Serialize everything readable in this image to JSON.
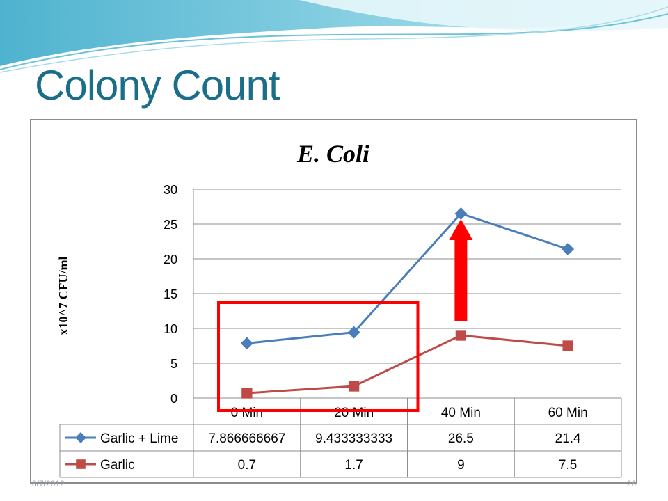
{
  "slide": {
    "title": "Colony Count",
    "date": "8/7/2012",
    "page_number": "26"
  },
  "colors": {
    "title": "#1b6e87",
    "garlic_lime": "#4a7ebb",
    "garlic": "#be4b48",
    "highlight": "#ff0000"
  },
  "chart_data": {
    "type": "line",
    "title": "E. Coli",
    "ylabel": "x10^7 CFU/ml",
    "xlabel": "",
    "categories": [
      "0 Min",
      "20 Min",
      "40 Min",
      "60 Min"
    ],
    "ylim": [
      0,
      30
    ],
    "yticks": [
      0,
      5,
      10,
      15,
      20,
      25,
      30
    ],
    "grid": true,
    "legend": "data-table",
    "series": [
      {
        "name": "Garlic + Lime",
        "values": [
          7.866666667,
          9.433333333,
          26.5,
          21.4
        ],
        "table_labels": [
          "7.866666667",
          "9.433333333",
          "26.5",
          "21.4"
        ],
        "marker": "diamond",
        "color": "#4a7ebb"
      },
      {
        "name": "Garlic",
        "values": [
          0.7,
          1.7,
          9,
          7.5
        ],
        "table_labels": [
          "0.7",
          "1.7",
          "9",
          "7.5"
        ],
        "marker": "square",
        "color": "#be4b48"
      }
    ],
    "annotations": [
      {
        "type": "rectangle",
        "around_categories": [
          "0 Min",
          "20 Min"
        ],
        "color": "#ff0000"
      },
      {
        "type": "arrow",
        "category": "40 Min",
        "from_value": 9,
        "to_value": 26.5,
        "color": "#ff0000"
      }
    ]
  }
}
